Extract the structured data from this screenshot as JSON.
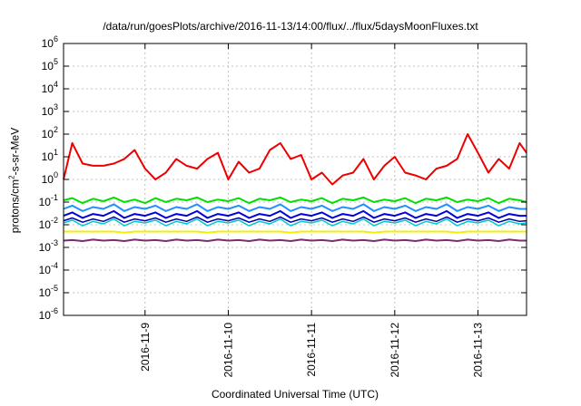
{
  "chart_data": {
    "type": "line",
    "title": "/data/run/goesPlots/archive/2016-11-13/14:00/flux/../flux/5daysMoonFluxes.txt",
    "xlabel": "Coordinated Universal Time (UTC)",
    "ylabel": {
      "pre": "protons/cm",
      "sup": "2",
      "post": "-s-sr-MeV"
    },
    "y_scale": "log",
    "ylim": [
      1e-06,
      1000000.0
    ],
    "y_ticks": [
      {
        "value": 1e-06,
        "base": "10",
        "exp": "-6"
      },
      {
        "value": 1e-05,
        "base": "10",
        "exp": "-5"
      },
      {
        "value": 0.0001,
        "base": "10",
        "exp": "-4"
      },
      {
        "value": 0.001,
        "base": "10",
        "exp": "-3"
      },
      {
        "value": 0.01,
        "base": "10",
        "exp": "-2"
      },
      {
        "value": 0.1,
        "base": "10",
        "exp": "-1"
      },
      {
        "value": 1,
        "base": "10",
        "exp": "0"
      },
      {
        "value": 10,
        "base": "10",
        "exp": "1"
      },
      {
        "value": 100,
        "base": "10",
        "exp": "2"
      },
      {
        "value": 1000,
        "base": "10",
        "exp": "3"
      },
      {
        "value": 10000,
        "base": "10",
        "exp": "4"
      },
      {
        "value": 100000,
        "base": "10",
        "exp": "5"
      },
      {
        "value": 1000000,
        "base": "10",
        "exp": "6"
      }
    ],
    "xlim": [
      "2016-11-08 00:30",
      "2016-11-13 14:00"
    ],
    "x_ticks": [
      {
        "value": "2016-11-09 00:00",
        "label": "2016-11-9"
      },
      {
        "value": "2016-11-10 00:00",
        "label": "2016-11-10"
      },
      {
        "value": "2016-11-11 00:00",
        "label": "2016-11-11"
      },
      {
        "value": "2016-11-12 00:00",
        "label": "2016-11-12"
      },
      {
        "value": "2016-11-13 00:00",
        "label": "2016-11-13"
      }
    ],
    "grid": true,
    "x": [
      "2016-11-08 00:30",
      "2016-11-08 03:00",
      "2016-11-08 06:00",
      "2016-11-08 09:00",
      "2016-11-08 12:00",
      "2016-11-08 15:00",
      "2016-11-08 18:00",
      "2016-11-08 21:00",
      "2016-11-09 00:00",
      "2016-11-09 03:00",
      "2016-11-09 06:00",
      "2016-11-09 09:00",
      "2016-11-09 12:00",
      "2016-11-09 15:00",
      "2016-11-09 18:00",
      "2016-11-09 21:00",
      "2016-11-10 00:00",
      "2016-11-10 03:00",
      "2016-11-10 06:00",
      "2016-11-10 09:00",
      "2016-11-10 12:00",
      "2016-11-10 15:00",
      "2016-11-10 18:00",
      "2016-11-10 21:00",
      "2016-11-11 00:00",
      "2016-11-11 03:00",
      "2016-11-11 06:00",
      "2016-11-11 09:00",
      "2016-11-11 12:00",
      "2016-11-11 15:00",
      "2016-11-11 18:00",
      "2016-11-11 21:00",
      "2016-11-12 00:00",
      "2016-11-12 03:00",
      "2016-11-12 06:00",
      "2016-11-12 09:00",
      "2016-11-12 12:00",
      "2016-11-12 15:00",
      "2016-11-12 18:00",
      "2016-11-12 21:00",
      "2016-11-13 00:00",
      "2016-11-13 03:00",
      "2016-11-13 06:00",
      "2016-11-13 09:00",
      "2016-11-13 12:00",
      "2016-11-13 14:00"
    ],
    "series": [
      {
        "color": "#ee0000",
        "width": 2,
        "values": [
          1,
          40,
          5,
          4,
          4,
          5,
          8,
          20,
          3,
          1,
          2,
          8,
          4,
          3,
          8,
          15,
          1,
          6,
          2,
          3,
          20,
          40,
          8,
          12,
          1,
          2,
          0.6,
          1.5,
          2,
          8,
          1,
          4,
          10,
          2,
          1.5,
          1,
          3,
          4,
          8,
          100,
          15,
          2,
          8,
          3,
          40,
          15
        ]
      },
      {
        "color": "#00e000",
        "width": 2,
        "values": [
          0.12,
          0.15,
          0.09,
          0.14,
          0.11,
          0.16,
          0.1,
          0.13,
          0.09,
          0.15,
          0.1,
          0.14,
          0.12,
          0.16,
          0.1,
          0.13,
          0.11,
          0.15,
          0.09,
          0.14,
          0.12,
          0.16,
          0.1,
          0.13,
          0.11,
          0.15,
          0.09,
          0.14,
          0.12,
          0.16,
          0.1,
          0.13,
          0.11,
          0.15,
          0.09,
          0.14,
          0.12,
          0.16,
          0.1,
          0.13,
          0.11,
          0.15,
          0.09,
          0.14,
          0.12,
          0.1
        ]
      },
      {
        "color": "#1e90ff",
        "width": 2,
        "values": [
          0.05,
          0.07,
          0.04,
          0.06,
          0.05,
          0.08,
          0.04,
          0.06,
          0.05,
          0.07,
          0.04,
          0.06,
          0.05,
          0.08,
          0.04,
          0.06,
          0.05,
          0.07,
          0.04,
          0.06,
          0.05,
          0.08,
          0.04,
          0.06,
          0.05,
          0.07,
          0.04,
          0.06,
          0.05,
          0.08,
          0.04,
          0.06,
          0.05,
          0.07,
          0.04,
          0.06,
          0.05,
          0.08,
          0.04,
          0.06,
          0.05,
          0.07,
          0.04,
          0.06,
          0.05,
          0.05
        ]
      },
      {
        "color": "#0000dd",
        "width": 2,
        "values": [
          0.025,
          0.035,
          0.02,
          0.03,
          0.025,
          0.04,
          0.02,
          0.03,
          0.025,
          0.035,
          0.02,
          0.03,
          0.025,
          0.04,
          0.02,
          0.03,
          0.025,
          0.035,
          0.02,
          0.03,
          0.025,
          0.04,
          0.02,
          0.03,
          0.025,
          0.035,
          0.02,
          0.03,
          0.025,
          0.04,
          0.02,
          0.03,
          0.025,
          0.035,
          0.02,
          0.03,
          0.025,
          0.04,
          0.02,
          0.03,
          0.025,
          0.035,
          0.02,
          0.03,
          0.025,
          0.025
        ]
      },
      {
        "color": "#00c8c8",
        "width": 1.5,
        "values": [
          0.012,
          0.016,
          0.009,
          0.014,
          0.011,
          0.018,
          0.009,
          0.014,
          0.012,
          0.016,
          0.009,
          0.014,
          0.011,
          0.018,
          0.009,
          0.014,
          0.012,
          0.016,
          0.009,
          0.014,
          0.011,
          0.018,
          0.009,
          0.014,
          0.012,
          0.016,
          0.009,
          0.014,
          0.011,
          0.018,
          0.009,
          0.014,
          0.012,
          0.016,
          0.009,
          0.014,
          0.011,
          0.018,
          0.009,
          0.014,
          0.012,
          0.016,
          0.009,
          0.014,
          0.011,
          0.012
        ]
      },
      {
        "color": "#0000aa",
        "width": 1.5,
        "values": [
          0.015,
          0.02,
          0.013,
          0.018,
          0.014,
          0.022,
          0.013,
          0.018,
          0.015,
          0.02,
          0.013,
          0.018,
          0.014,
          0.022,
          0.013,
          0.018,
          0.015,
          0.02,
          0.013,
          0.018,
          0.014,
          0.022,
          0.013,
          0.018,
          0.015,
          0.02,
          0.013,
          0.018,
          0.014,
          0.022,
          0.013,
          0.018,
          0.015,
          0.02,
          0.013,
          0.018,
          0.014,
          0.022,
          0.013,
          0.018,
          0.015,
          0.02,
          0.013,
          0.018,
          0.014,
          0.015
        ]
      },
      {
        "color": "#f0f000",
        "width": 2,
        "values": [
          0.005,
          0.005,
          0.005,
          0.005,
          0.005,
          0.005,
          0.0045,
          0.005,
          0.005,
          0.005,
          0.005,
          0.005,
          0.005,
          0.005,
          0.0045,
          0.005,
          0.005,
          0.005,
          0.005,
          0.005,
          0.005,
          0.005,
          0.0045,
          0.005,
          0.005,
          0.005,
          0.005,
          0.005,
          0.005,
          0.005,
          0.0045,
          0.005,
          0.005,
          0.005,
          0.005,
          0.005,
          0.005,
          0.005,
          0.0045,
          0.005,
          0.005,
          0.005,
          0.005,
          0.005,
          0.005,
          0.005
        ]
      },
      {
        "color": "#7b2d6e",
        "width": 2,
        "values": [
          0.002,
          0.0021,
          0.0019,
          0.0022,
          0.002,
          0.0021,
          0.0019,
          0.0022,
          0.002,
          0.0021,
          0.0019,
          0.0022,
          0.002,
          0.0021,
          0.0019,
          0.0022,
          0.002,
          0.0021,
          0.0019,
          0.0022,
          0.002,
          0.0021,
          0.0019,
          0.0022,
          0.002,
          0.0021,
          0.0019,
          0.0022,
          0.002,
          0.0021,
          0.0019,
          0.0022,
          0.002,
          0.0021,
          0.0019,
          0.0022,
          0.002,
          0.0021,
          0.0019,
          0.0022,
          0.002,
          0.0021,
          0.0019,
          0.0022,
          0.002,
          0.002
        ]
      }
    ]
  }
}
